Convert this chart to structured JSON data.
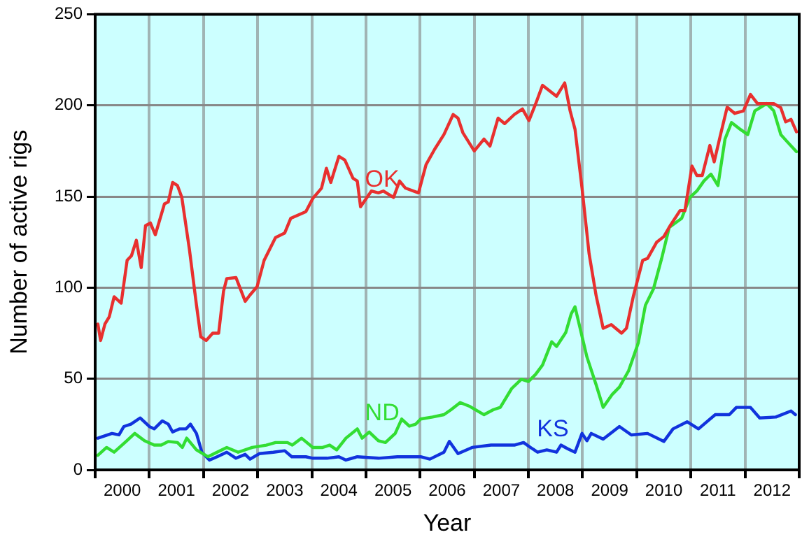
{
  "chart_data": {
    "type": "line",
    "xlabel": "Year",
    "ylabel": "Number of active rigs",
    "xlim": [
      2000,
      2013
    ],
    "ylim": [
      0,
      250
    ],
    "yticks": [
      0,
      50,
      100,
      150,
      200,
      250
    ],
    "xticks": [
      {
        "value": 2000,
        "label": null
      },
      {
        "value": 2000.5,
        "label": "2000"
      },
      {
        "value": 2001,
        "label": null
      },
      {
        "value": 2001.5,
        "label": "2001"
      },
      {
        "value": 2002,
        "label": null
      },
      {
        "value": 2002.5,
        "label": "2002"
      },
      {
        "value": 2003,
        "label": null
      },
      {
        "value": 2003.5,
        "label": "2003"
      },
      {
        "value": 2004,
        "label": null
      },
      {
        "value": 2004.5,
        "label": "2004"
      },
      {
        "value": 2005,
        "label": null
      },
      {
        "value": 2005.5,
        "label": "2005"
      },
      {
        "value": 2006,
        "label": null
      },
      {
        "value": 2006.5,
        "label": "2006"
      },
      {
        "value": 2007,
        "label": null
      },
      {
        "value": 2007.5,
        "label": "2007"
      },
      {
        "value": 2008,
        "label": null
      },
      {
        "value": 2008.5,
        "label": "2008"
      },
      {
        "value": 2009,
        "label": null
      },
      {
        "value": 2009.5,
        "label": "2009"
      },
      {
        "value": 2010,
        "label": null
      },
      {
        "value": 2010.5,
        "label": "2010"
      },
      {
        "value": 2011,
        "label": null
      },
      {
        "value": 2011.5,
        "label": "2011"
      },
      {
        "value": 2012,
        "label": null
      },
      {
        "value": 2012.5,
        "label": "2012"
      },
      {
        "value": 2013,
        "label": null
      }
    ],
    "grid": true,
    "legend": false,
    "marker": "none",
    "line_style": "solid",
    "series": [
      {
        "name": "OK",
        "color": "#e8302f",
        "x": [
          2000.05,
          2000.1,
          2000.18,
          2000.26,
          2000.35,
          2000.48,
          2000.59,
          2000.67,
          2000.76,
          2000.85,
          2000.93,
          2001.02,
          2001.11,
          2001.28,
          2001.35,
          2001.43,
          2001.52,
          2001.6,
          2001.74,
          2001.87,
          2001.95,
          2002.05,
          2002.17,
          2002.28,
          2002.37,
          2002.43,
          2002.6,
          2002.77,
          2002.86,
          2002.99,
          2003.12,
          2003.33,
          2003.5,
          2003.61,
          2003.89,
          2004.02,
          2004.18,
          2004.27,
          2004.35,
          2004.5,
          2004.61,
          2004.76,
          2004.84,
          2004.9,
          2005.1,
          2005.23,
          2005.32,
          2005.51,
          2005.62,
          2005.73,
          2005.97,
          2006.11,
          2006.27,
          2006.44,
          2006.61,
          2006.7,
          2006.79,
          2007.0,
          2007.18,
          2007.29,
          2007.44,
          2007.56,
          2007.74,
          2007.89,
          2008.01,
          2008.13,
          2008.26,
          2008.52,
          2008.67,
          2008.77,
          2008.86,
          2008.99,
          2009.12,
          2009.25,
          2009.38,
          2009.53,
          2009.72,
          2009.81,
          2009.94,
          2010.11,
          2010.2,
          2010.37,
          2010.5,
          2010.63,
          2010.8,
          2010.89,
          2011.02,
          2011.11,
          2011.21,
          2011.35,
          2011.43,
          2011.54,
          2011.67,
          2011.81,
          2011.97,
          2012.1,
          2012.23,
          2012.36,
          2012.53,
          2012.66,
          2012.75,
          2012.85,
          2012.95
        ],
        "values": [
          80,
          71,
          80,
          84,
          95,
          91.5,
          115,
          117.5,
          126,
          111,
          134,
          135.5,
          129,
          146,
          147,
          157.7,
          156,
          149.5,
          121,
          90.5,
          73,
          71,
          75,
          75,
          98,
          105,
          105.5,
          92.5,
          96,
          100.5,
          115,
          127.5,
          130,
          138,
          141.7,
          149,
          154.6,
          165.5,
          157.7,
          172,
          170,
          160,
          158.5,
          144.4,
          153,
          152,
          153,
          149.5,
          158.5,
          154.6,
          152,
          167.5,
          176,
          184,
          195,
          193,
          185,
          175,
          181.5,
          177.7,
          193,
          190,
          195,
          198,
          191.7,
          200.6,
          211,
          205,
          212.3,
          197,
          187,
          154.6,
          118.7,
          95.6,
          77.7,
          79.7,
          75,
          77.7,
          95.6,
          115,
          116,
          125,
          128,
          134.6,
          142.3,
          142.3,
          166.7,
          161.5,
          161.5,
          178,
          169,
          183,
          199,
          195.6,
          197,
          206,
          201,
          201,
          201,
          198.7,
          191,
          192.3,
          185.5
        ]
      },
      {
        "name": "ND",
        "color": "#33dd33",
        "x": [
          2000.05,
          2000.21,
          2000.35,
          2000.57,
          2000.73,
          2000.91,
          2001.09,
          2001.22,
          2001.35,
          2001.52,
          2001.61,
          2001.69,
          2001.87,
          2002.08,
          2002.25,
          2002.43,
          2002.64,
          2002.9,
          2003.16,
          2003.33,
          2003.55,
          2003.64,
          2003.81,
          2004.02,
          2004.2,
          2004.33,
          2004.46,
          2004.63,
          2004.84,
          2004.93,
          2005.06,
          2005.23,
          2005.36,
          2005.54,
          2005.66,
          2005.8,
          2005.92,
          2006.01,
          2006.23,
          2006.44,
          2006.57,
          2006.74,
          2006.92,
          2007.18,
          2007.35,
          2007.48,
          2007.69,
          2007.87,
          2008.0,
          2008.13,
          2008.26,
          2008.43,
          2008.52,
          2008.69,
          2008.79,
          2008.86,
          2008.96,
          2009.08,
          2009.25,
          2009.38,
          2009.55,
          2009.68,
          2009.85,
          2010.03,
          2010.16,
          2010.31,
          2010.46,
          2010.6,
          2010.83,
          2010.98,
          2011.11,
          2011.24,
          2011.37,
          2011.5,
          2011.63,
          2011.75,
          2011.92,
          2012.05,
          2012.18,
          2012.4,
          2012.53,
          2012.66,
          2012.79,
          2012.95
        ],
        "values": [
          8,
          12.3,
          9.7,
          15.6,
          20,
          16,
          13.6,
          13.6,
          15.6,
          15,
          12.3,
          17.4,
          11,
          7.2,
          9.7,
          12.3,
          9.7,
          12.3,
          13.6,
          15,
          15,
          13.6,
          17.4,
          12.3,
          12.3,
          13.6,
          11,
          17.4,
          22.5,
          17.4,
          20.8,
          16,
          15,
          20,
          27.9,
          24,
          25.1,
          27.9,
          29,
          30.3,
          33,
          36.9,
          34.8,
          30.3,
          33,
          34.3,
          44.6,
          49.7,
          48.5,
          52.3,
          57.5,
          70.3,
          67.7,
          75.4,
          85.6,
          89.5,
          77,
          62,
          46.7,
          34.3,
          41.5,
          45.4,
          54.4,
          69.8,
          90.3,
          99.4,
          116,
          133,
          138,
          149.5,
          153,
          158.5,
          162.3,
          156,
          181.5,
          190.6,
          186.7,
          184,
          197,
          201,
          197,
          184,
          179.7,
          174.6
        ]
      },
      {
        "name": "KS",
        "color": "#1133dd",
        "x": [
          2000.05,
          2000.31,
          2000.44,
          2000.53,
          2000.66,
          2000.83,
          2001.0,
          2001.09,
          2001.24,
          2001.35,
          2001.43,
          2001.56,
          2001.68,
          2001.76,
          2001.87,
          2001.97,
          2002.11,
          2002.25,
          2002.43,
          2002.6,
          2002.77,
          2002.86,
          2003.03,
          2003.29,
          2003.5,
          2003.63,
          2003.89,
          2004.02,
          2004.28,
          2004.5,
          2004.63,
          2004.84,
          2005.23,
          2005.58,
          2006.01,
          2006.18,
          2006.44,
          2006.54,
          2006.7,
          2006.96,
          2007.31,
          2007.74,
          2007.91,
          2008.04,
          2008.17,
          2008.34,
          2008.52,
          2008.6,
          2008.73,
          2008.86,
          2008.99,
          2009.08,
          2009.16,
          2009.38,
          2009.68,
          2009.9,
          2010.2,
          2010.5,
          2010.67,
          2010.93,
          2011.14,
          2011.45,
          2011.71,
          2011.84,
          2012.1,
          2012.27,
          2012.57,
          2012.85,
          2012.93
        ],
        "values": [
          17.4,
          20,
          19.2,
          23.8,
          25.1,
          28.5,
          23.8,
          22.5,
          26.9,
          25.1,
          20.8,
          22.5,
          22.5,
          25.1,
          20,
          9.7,
          5.4,
          7.2,
          9.7,
          6.4,
          8.5,
          5.9,
          8.9,
          9.7,
          10.5,
          7.2,
          7.2,
          6.4,
          6.4,
          7.2,
          5.4,
          7.2,
          6.4,
          7.2,
          7.2,
          5.9,
          9.7,
          15.6,
          8.9,
          12.3,
          13.6,
          13.6,
          15,
          12.3,
          9.7,
          11,
          9.7,
          13.6,
          11.5,
          9.7,
          20,
          16,
          20,
          16.9,
          23.8,
          19.2,
          20,
          15.6,
          22.5,
          26.4,
          22.5,
          30.3,
          30.3,
          34.3,
          34.3,
          28.5,
          29,
          32.3,
          30.3
        ]
      }
    ]
  }
}
